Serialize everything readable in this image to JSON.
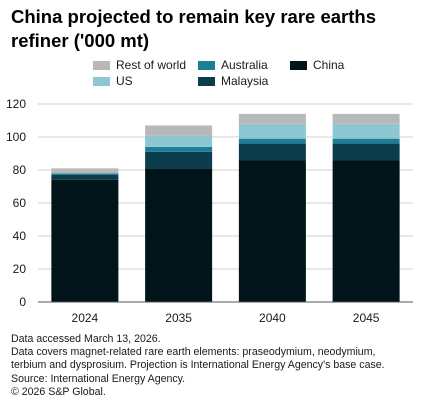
{
  "title_lines": [
    "China projected to remain key rare earths",
    "refiner ('000 mt)"
  ],
  "notes": [
    "Data accessed March 13, 2026.",
    "Data covers magnet-related rare earth elements: praseodymium, neodymium,",
    "terbium and dysprosium. Projection is International Energy Agency's base case.",
    "Source: International Energy Agency.",
    "© 2026 S&P Global."
  ],
  "colors": {
    "China": "#00141a",
    "Malaysia": "#0b3d4c",
    "Australia": "#1c7f95",
    "US": "#8fc6d3",
    "Rest of world": "#b8b8b8",
    "grid": "#d0d0d0",
    "axis": "#555555"
  },
  "chart_data": {
    "type": "bar",
    "stacked": true,
    "title": "China projected to remain key rare earths refiner ('000 mt)",
    "categories": [
      "2024",
      "2035",
      "2040",
      "2045"
    ],
    "series": [
      {
        "name": "China",
        "values": [
          74,
          81,
          86,
          86
        ]
      },
      {
        "name": "Malaysia",
        "values": [
          3,
          10,
          10,
          10
        ]
      },
      {
        "name": "Australia",
        "values": [
          1,
          3,
          3,
          3
        ]
      },
      {
        "name": "US",
        "values": [
          0,
          7,
          9,
          9
        ]
      },
      {
        "name": "Rest of world",
        "values": [
          3,
          6,
          6,
          6
        ]
      }
    ],
    "legend_order": [
      "Rest of world",
      "Australia",
      "China",
      "US",
      "Malaysia"
    ],
    "ylim": [
      0,
      120
    ],
    "yticks": [
      0,
      20,
      40,
      60,
      80,
      100,
      120
    ],
    "grid": true,
    "legend_position": "top",
    "xlabel": "",
    "ylabel": ""
  }
}
